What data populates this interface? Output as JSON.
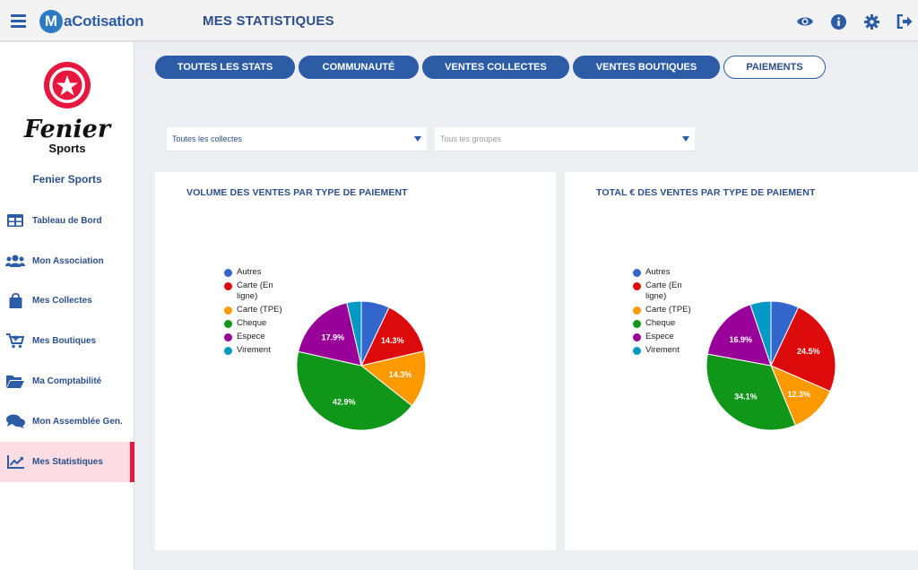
{
  "header": {
    "logo_letter": "M",
    "logo_text": "aCotisation",
    "page_title": "MES STATISTIQUES",
    "icons": [
      "eye-icon",
      "info-icon",
      "gear-icon",
      "logout-icon"
    ]
  },
  "sidebar": {
    "club_logo_line1": "Fenier",
    "club_logo_line2": "Sports",
    "club_name": "Fenier Sports",
    "items": [
      {
        "label": "Tableau de Bord",
        "icon": "table-icon"
      },
      {
        "label": "Mon Association",
        "icon": "users-icon"
      },
      {
        "label": "Mes Collectes",
        "icon": "bag-icon"
      },
      {
        "label": "Mes Boutiques",
        "icon": "cart-icon"
      },
      {
        "label": "Ma Comptabilité",
        "icon": "folder-icon"
      },
      {
        "label": "Mon Assemblée Gen.",
        "icon": "comments-icon"
      },
      {
        "label": "Mes Statistiques",
        "icon": "chart-line-icon"
      }
    ],
    "active_index": 6
  },
  "tabs": [
    {
      "label": "TOUTES LES STATS"
    },
    {
      "label": "COMMUNAUTÉ"
    },
    {
      "label": "VENTES COLLECTES"
    },
    {
      "label": "VENTES BOUTIQUES"
    },
    {
      "label": "PAIEMENTS"
    }
  ],
  "active_tab": 4,
  "filters": {
    "collectes": "Toutes les collectes",
    "groupes_placeholder": "Tous les groupes"
  },
  "colors": {
    "primary": "#2c5ca5",
    "accent": "#e8173f",
    "Autres": "#3366cc",
    "Carte (En ligne)": "#dc0a0a",
    "Carte (TPE)": "#ff9900",
    "Cheque": "#109618",
    "Espece": "#990099",
    "Virement": "#0099c6"
  },
  "chart_data": [
    {
      "type": "pie",
      "title": "VOLUME DES VENTES PAR TYPE DE PAIEMENT",
      "categories": [
        "Autres",
        "Carte (En ligne)",
        "Carte (TPE)",
        "Cheque",
        "Espece",
        "Virement"
      ],
      "values": [
        7.1,
        14.3,
        14.3,
        42.9,
        17.9,
        3.6
      ],
      "labels": [
        "",
        "14.3%",
        "14.3%",
        "42.9%",
        "17.9%",
        ""
      ],
      "legend_position": "left"
    },
    {
      "type": "pie",
      "title": "TOTAL € DES VENTES PAR TYPE DE PAIEMENT",
      "categories": [
        "Autres",
        "Carte (En ligne)",
        "Carte (TPE)",
        "Cheque",
        "Espece",
        "Virement"
      ],
      "values": [
        7.0,
        24.5,
        12.3,
        34.1,
        16.9,
        5.2
      ],
      "labels": [
        "",
        "24.5%",
        "12.3%",
        "34.1%",
        "16.9%",
        ""
      ],
      "legend_position": "left"
    }
  ]
}
